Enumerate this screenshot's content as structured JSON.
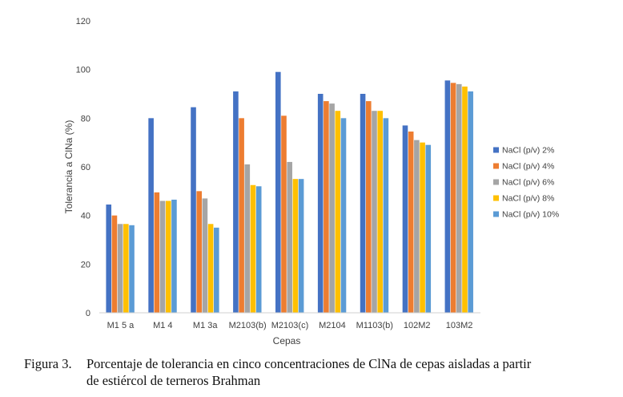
{
  "chart_data": {
    "type": "bar",
    "title": "",
    "xlabel": "Cepas",
    "ylabel": "Tolerancia a ClNa (%)",
    "ylim": [
      0,
      120
    ],
    "yticks": [
      0,
      20,
      40,
      60,
      80,
      100,
      120
    ],
    "grid": false,
    "legend_position": "right",
    "categories": [
      "M1 5 a",
      "M1 4",
      "M1 3a",
      "M2103(b)",
      "M2103(c)",
      "M2104",
      "M1103(b)",
      "102M2",
      "103M2"
    ],
    "series": [
      {
        "name": "NaCl (p/v) 2%",
        "color": "#4472C4",
        "values": [
          44.5,
          80,
          84.5,
          91,
          99,
          90,
          90,
          77,
          95.5
        ]
      },
      {
        "name": "NaCl (p/v) 4%",
        "color": "#ED7D31",
        "values": [
          40,
          49.5,
          50,
          80,
          81,
          87,
          87,
          74.5,
          94.5
        ]
      },
      {
        "name": "NaCl (p/v) 6%",
        "color": "#A5A5A5",
        "values": [
          36.5,
          46,
          47,
          61,
          62,
          86,
          83,
          71,
          94
        ]
      },
      {
        "name": "NaCl (p/v) 8%",
        "color": "#FFC000",
        "values": [
          36.5,
          46,
          36.5,
          52.5,
          55,
          83,
          83,
          70,
          93
        ]
      },
      {
        "name": "NaCl (p/v) 10%",
        "color": "#5B9BD5",
        "values": [
          36,
          46.5,
          35,
          52,
          55,
          80,
          80,
          69,
          91
        ]
      }
    ]
  },
  "caption": {
    "label": "Figura 3.",
    "line1": "Porcentaje de tolerancia en cinco concentraciones de ClNa de cepas aisladas a partir",
    "line2": "de estiércol de terneros Brahman"
  }
}
